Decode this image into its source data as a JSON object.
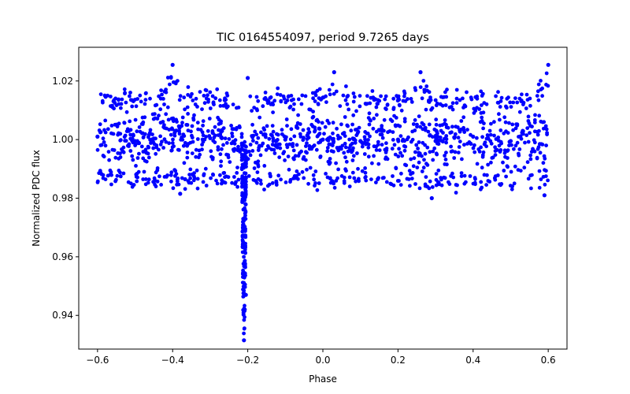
{
  "chart_data": {
    "type": "scatter",
    "title": "TIC 0164554097, period 9.7265 days",
    "xlabel": "Phase",
    "ylabel": "Normalized PDC flux",
    "xlim": [
      -0.65,
      0.65
    ],
    "ylim": [
      0.9285,
      1.0315
    ],
    "xticks": [
      -0.6,
      -0.4,
      -0.2,
      0.0,
      0.2,
      0.4,
      0.6
    ],
    "xtick_labels": [
      "−0.6",
      "−0.4",
      "−0.2",
      "0.0",
      "0.2",
      "0.4",
      "0.6"
    ],
    "yticks": [
      0.94,
      0.96,
      0.98,
      1.0,
      1.02
    ],
    "ytick_labels": [
      "0.94",
      "0.96",
      "0.98",
      "1.00",
      "1.02"
    ],
    "grid": false,
    "series": [
      {
        "name": "PDC flux",
        "color": "#0000ff",
        "phase_range": [
          -0.6,
          0.6
        ],
        "bands": [
          {
            "center": 1.0,
            "spread": 0.0045,
            "fraction": 0.55
          },
          {
            "center": 1.0135,
            "spread": 0.0018,
            "fraction": 0.2
          },
          {
            "center": 0.9865,
            "spread": 0.0018,
            "fraction": 0.2
          }
        ],
        "eclipse": {
          "center_phase": -0.21,
          "width_phase": 0.012,
          "min_flux": 0.931
        },
        "points": [
          [
            -0.6,
            1.001
          ],
          [
            -0.5,
            0.9995
          ],
          [
            -0.4,
            1.0255
          ],
          [
            -0.3,
            1.0005
          ],
          [
            -0.21,
            0.9315
          ],
          [
            -0.205,
            0.947
          ],
          [
            -0.2,
            1.021
          ],
          [
            -0.1,
            1.0
          ],
          [
            0.0,
            1.0
          ],
          [
            0.03,
            1.023
          ],
          [
            0.1,
            0.9995
          ],
          [
            0.2,
            1.0
          ],
          [
            0.26,
            1.023
          ],
          [
            0.3,
            0.9995
          ],
          [
            0.4,
            1.001
          ],
          [
            0.5,
            0.9995
          ],
          [
            0.6,
            1.0255
          ],
          [
            0.59,
            0.981
          ],
          [
            -0.38,
            0.9815
          ],
          [
            0.29,
            0.98
          ]
        ]
      }
    ]
  }
}
